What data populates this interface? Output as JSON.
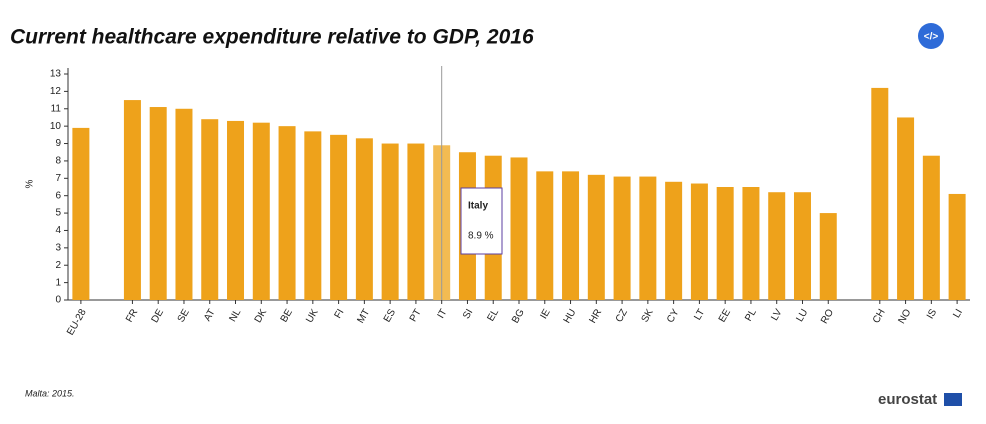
{
  "chart_data": {
    "type": "bar",
    "title": "Current healthcare expenditure relative to GDP, 2016",
    "y_label": "%",
    "categories": [
      "EU-28",
      null,
      "FR",
      "DE",
      "SE",
      "AT",
      "NL",
      "DK",
      "BE",
      "UK",
      "FI",
      "MT",
      "ES",
      "PT",
      "IT",
      "SI",
      "EL",
      "BG",
      "IE",
      "HU",
      "HR",
      "CZ",
      "SK",
      "CY",
      "LT",
      "EE",
      "PL",
      "LV",
      "LU",
      "RO",
      null,
      "CH",
      "NO",
      "IS",
      "LI"
    ],
    "values": [
      9.9,
      null,
      11.5,
      11.1,
      11.0,
      10.4,
      10.3,
      10.2,
      10.0,
      9.7,
      9.5,
      9.3,
      9.0,
      9.0,
      8.9,
      8.5,
      8.3,
      8.2,
      7.4,
      7.4,
      7.2,
      7.1,
      7.1,
      6.8,
      6.7,
      6.5,
      6.5,
      6.2,
      6.2,
      5.0,
      null,
      12.2,
      10.5,
      8.3,
      6.1
    ],
    "color": "#eea21b",
    "highlight_color": "#f3bb52",
    "ylim": [
      0,
      13
    ],
    "yticks": [
      0,
      1,
      2,
      3,
      4,
      5,
      6,
      7,
      8,
      9,
      10,
      11,
      12,
      13
    ],
    "tooltip": {
      "title": "Italy",
      "text": "8.9 %"
    },
    "note": "Malta: 2015.",
    "source": "eurostat",
    "embed_button": "</>"
  }
}
